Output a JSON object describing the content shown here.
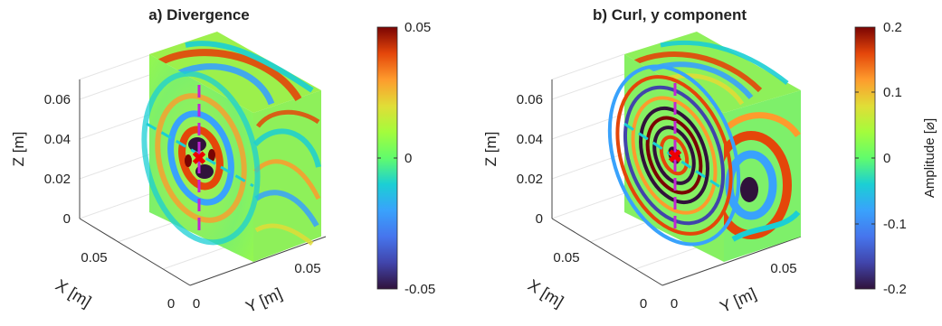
{
  "chart_data": [
    {
      "type": "heatmap",
      "title": "a) Divergence",
      "xlabel": "X [m]",
      "ylabel": "Y [m]",
      "zlabel": "Z [m]",
      "x_ticks": [
        "0",
        "0.05"
      ],
      "y_ticks": [
        "0",
        "0.05"
      ],
      "z_ticks": [
        "0",
        "0.02",
        "0.04",
        "0.06"
      ],
      "colorbar": {
        "range": [
          -0.05,
          0.05
        ],
        "ticks": [
          "-0.05",
          "0",
          "0.05"
        ],
        "label": ""
      },
      "colormap": "turbo"
    },
    {
      "type": "heatmap",
      "title": "b) Curl, y component",
      "xlabel": "X [m]",
      "ylabel": "Y [m]",
      "zlabel": "Z [m]",
      "x_ticks": [
        "0",
        "0.05"
      ],
      "y_ticks": [
        "0",
        "0.05"
      ],
      "z_ticks": [
        "0",
        "0.02",
        "0.04",
        "0.06"
      ],
      "colorbar": {
        "range": [
          -0.2,
          0.2
        ],
        "ticks": [
          "-0.2",
          "-0.1",
          "0",
          "0.1",
          "0.2"
        ],
        "label": "Amplitude [⌀]"
      },
      "colormap": "turbo"
    }
  ]
}
